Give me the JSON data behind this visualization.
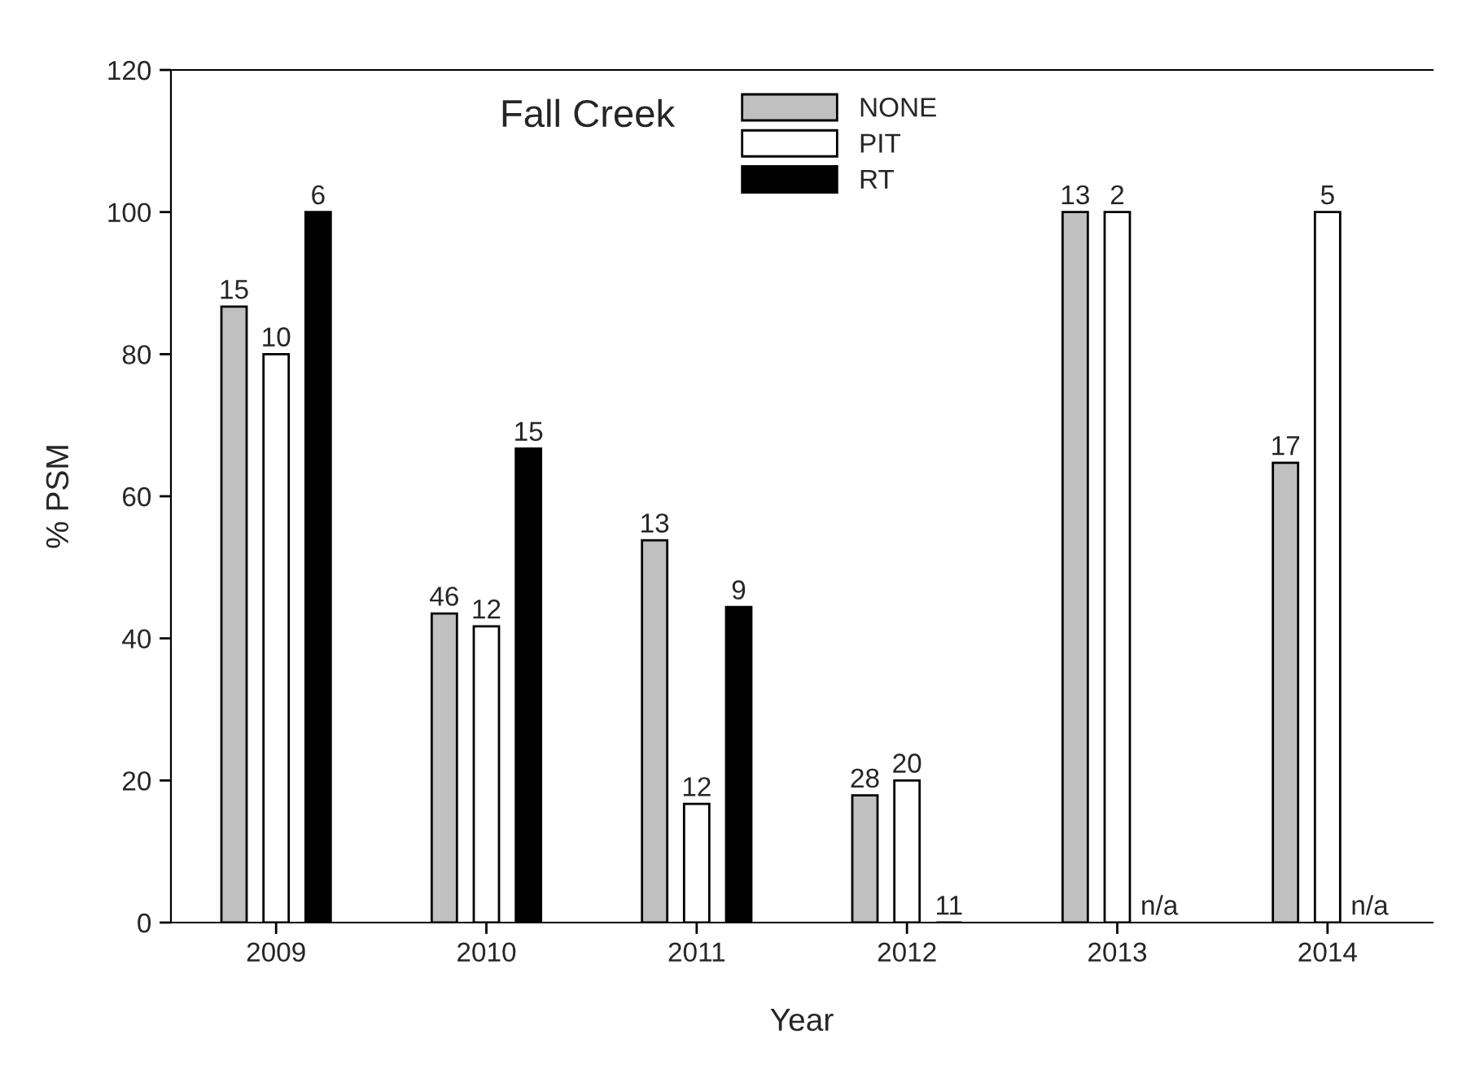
{
  "chart_data": {
    "type": "bar",
    "title": "Fall Creek",
    "xlabel": "Year",
    "ylabel": "% PSM",
    "categories": [
      "2009",
      "2010",
      "2011",
      "2012",
      "2013",
      "2014"
    ],
    "series": [
      {
        "name": "NONE",
        "color": "#c0c0c0",
        "values": [
          86.7,
          43.5,
          53.8,
          17.9,
          100,
          64.7
        ]
      },
      {
        "name": "PIT",
        "color": "#ffffff",
        "values": [
          80,
          41.7,
          16.7,
          20,
          100,
          100
        ]
      },
      {
        "name": "RT",
        "color": "#000000",
        "values": [
          100,
          66.7,
          44.4,
          0,
          null,
          null
        ]
      }
    ],
    "annotations": [
      "15",
      "46",
      "13",
      "28",
      "13",
      "17",
      "10",
      "12",
      "12",
      "20",
      "2",
      "5",
      "6",
      "15",
      "9",
      "11",
      "n/a",
      "n/a"
    ],
    "ylim": [
      0,
      120
    ],
    "yticks": [
      0,
      20,
      40,
      60,
      80,
      100,
      120
    ],
    "grid": false,
    "legend": "top"
  }
}
